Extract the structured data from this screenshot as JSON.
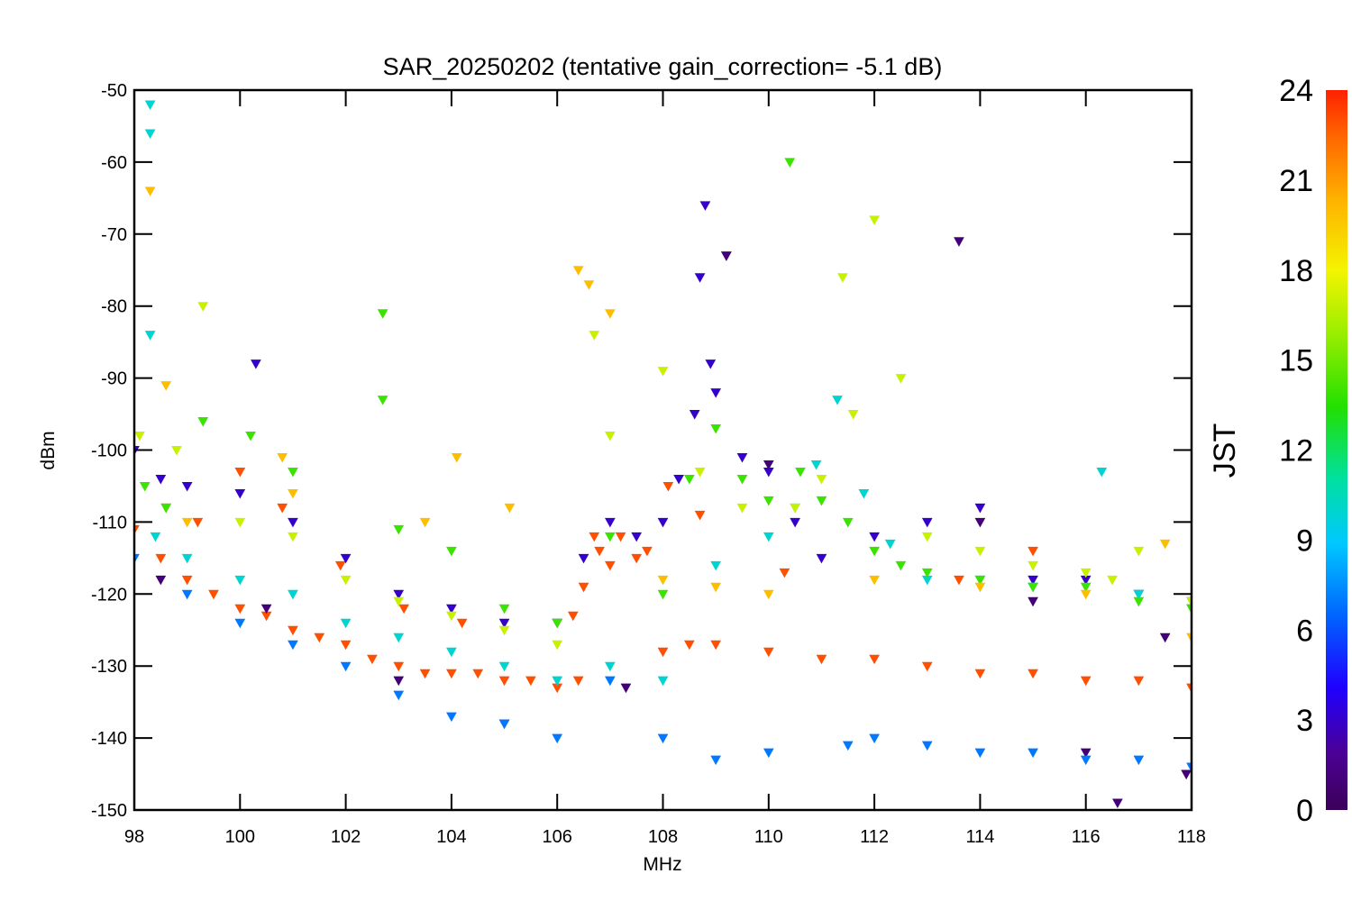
{
  "chart_data": {
    "type": "scatter",
    "title": "SAR_20250202 (tentative gain_correction= -5.1 dB)",
    "xlabel": "MHz",
    "ylabel": "dBm",
    "xlim": [
      98,
      118
    ],
    "ylim": [
      -150,
      -50
    ],
    "x_ticks": [
      "98",
      "100",
      "102",
      "104",
      "106",
      "108",
      "110",
      "112",
      "114",
      "116",
      "118"
    ],
    "y_ticks": [
      "-50",
      "-60",
      "-70",
      "-80",
      "-90",
      "-100",
      "-110",
      "-120",
      "-130",
      "-140",
      "-150"
    ],
    "colorbar": {
      "label": "JST",
      "range": [
        0,
        24
      ],
      "ticks": [
        "0",
        "3",
        "6",
        "9",
        "12",
        "15",
        "18",
        "21",
        "24"
      ],
      "colormap": "rainbow (purple to red)"
    },
    "series": [
      {
        "color_value": 23,
        "x": [
          98.0,
          98.5,
          99.0,
          99.5,
          100.0,
          100.5,
          101.0,
          101.5,
          102.0,
          102.5,
          103.0,
          103.5,
          104.0,
          104.5,
          105.0,
          105.5,
          106.0,
          106.4,
          106.5,
          106.8,
          107.0,
          107.5,
          108.0,
          108.5,
          109.0,
          110.0,
          111.0,
          112.0,
          113.0,
          114.0,
          115.0,
          116.0,
          117.0,
          118.0
        ],
        "y": [
          -111,
          -115,
          -118,
          -120,
          -122,
          -123,
          -125,
          -126,
          -127,
          -129,
          -130,
          -131,
          -131,
          -131,
          -132,
          -132,
          -133,
          -132,
          -119,
          -114,
          -116,
          -115,
          -128,
          -127,
          -127,
          -128,
          -129,
          -129,
          -130,
          -131,
          -131,
          -132,
          -132,
          -133
        ]
      },
      {
        "color_value": 23,
        "x": [
          98.6,
          99.2,
          100.0,
          100.8,
          101.9,
          103.1,
          104.2,
          106.3,
          106.7,
          107.2,
          107.7,
          108.1,
          108.7,
          110.3,
          113.6,
          115.0,
          117.9
        ],
        "y": [
          -108,
          -110,
          -103,
          -108,
          -116,
          -122,
          -124,
          -123,
          -112,
          -112,
          -114,
          -105,
          -109,
          -117,
          -118,
          -114,
          -145
        ]
      },
      {
        "color_value": 3,
        "x": [
          98.0,
          98.5,
          99.0,
          100.0,
          100.3,
          101.0,
          102.0,
          103.0,
          104.0,
          105.0,
          106.0,
          106.5,
          107.0,
          107.5,
          108.0,
          108.3,
          108.6,
          108.7,
          108.8,
          108.9,
          109.0,
          109.2,
          109.5,
          110.0,
          110.5,
          111.0,
          112.0,
          113.0,
          114.0,
          115.0,
          116.0,
          117.0,
          118.0
        ],
        "y": [
          -100,
          -104,
          -105,
          -106,
          -88,
          -110,
          -115,
          -120,
          -122,
          -124,
          -124,
          -115,
          -110,
          -112,
          -110,
          -104,
          -95,
          -76,
          -66,
          -88,
          -92,
          -73,
          -101,
          -103,
          -110,
          -115,
          -112,
          -110,
          -108,
          -118,
          -118,
          -120,
          -121
        ]
      },
      {
        "color_value": 10,
        "x": [
          98.3,
          98.3,
          98.3,
          98.4,
          99.0,
          100.0,
          101.0,
          102.0,
          103.0,
          104.0,
          105.0,
          106.0,
          107.0,
          108.0,
          109.0,
          110.0,
          110.5,
          110.9,
          111.3,
          111.8,
          112.3,
          113.0,
          114.0,
          115.0,
          116.3,
          117.0,
          118.0
        ],
        "y": [
          -52,
          -56,
          -84,
          -112,
          -115,
          -118,
          -120,
          -124,
          -126,
          -128,
          -130,
          -132,
          -130,
          -132,
          -116,
          -112,
          -108,
          -102,
          -93,
          -106,
          -113,
          -118,
          -118,
          -119,
          -103,
          -120,
          -122
        ]
      },
      {
        "color_value": 14,
        "x": [
          98.2,
          98.6,
          99.3,
          100.2,
          101.0,
          102.7,
          102.7,
          103.0,
          104.0,
          105.0,
          106.0,
          107.0,
          108.0,
          108.5,
          109.0,
          109.5,
          110.0,
          110.4,
          110.6,
          111.0,
          111.5,
          112.0,
          112.5,
          113.0,
          114.0,
          115.0,
          116.0,
          117.0,
          118.0
        ],
        "y": [
          -105,
          -108,
          -96,
          -98,
          -103,
          -81,
          -93,
          -111,
          -114,
          -122,
          -124,
          -112,
          -120,
          -104,
          -97,
          -104,
          -107,
          -60,
          -103,
          -107,
          -110,
          -114,
          -116,
          -117,
          -118,
          -119,
          -119,
          -121,
          -122
        ]
      },
      {
        "color_value": 17,
        "x": [
          98.1,
          98.8,
          99.3,
          100.0,
          101.0,
          102.0,
          103.0,
          104.0,
          105.0,
          106.0,
          106.7,
          107.0,
          108.0,
          108.7,
          109.5,
          110.5,
          111.0,
          111.4,
          111.6,
          112.0,
          112.5,
          113.0,
          114.0,
          115.0,
          116.0,
          116.5,
          117.0,
          118.0
        ],
        "y": [
          -98,
          -100,
          -80,
          -110,
          -112,
          -118,
          -121,
          -123,
          -125,
          -127,
          -84,
          -98,
          -89,
          -103,
          -108,
          -108,
          -104,
          -76,
          -95,
          -68,
          -90,
          -112,
          -114,
          -116,
          -117,
          -118,
          -114,
          -121
        ]
      },
      {
        "color_value": 20,
        "x": [
          98.3,
          98.6,
          99.0,
          100.8,
          101.0,
          103.5,
          104.1,
          105.1,
          106.4,
          106.6,
          107.0,
          108.0,
          109.0,
          110.0,
          112.0,
          114.0,
          116.0,
          117.5,
          118.0
        ],
        "y": [
          -64,
          -91,
          -110,
          -101,
          -106,
          -110,
          -101,
          -108,
          -75,
          -77,
          -81,
          -118,
          -119,
          -120,
          -118,
          -119,
          -120,
          -113,
          -126
        ]
      },
      {
        "color_value": 1,
        "x": [
          98.5,
          100.5,
          103.0,
          105.0,
          107.3,
          109.2,
          110.0,
          113.6,
          114.0,
          115.0,
          116.0,
          116.6,
          117.5,
          117.9
        ],
        "y": [
          -118,
          -122,
          -132,
          -138,
          -133,
          -73,
          -102,
          -71,
          -110,
          -121,
          -142,
          -149,
          -126,
          -145
        ]
      },
      {
        "color_value": 7,
        "x": [
          98.0,
          99.0,
          100.0,
          101.0,
          102.0,
          103.0,
          104.0,
          105.0,
          106.0,
          107.0,
          108.0,
          109.0,
          110.0,
          111.5,
          112.0,
          113.0,
          114.0,
          115.0,
          116.0,
          117.0,
          118.0
        ],
        "y": [
          -115,
          -120,
          -124,
          -127,
          -130,
          -134,
          -137,
          -138,
          -140,
          -132,
          -140,
          -143,
          -142,
          -141,
          -140,
          -141,
          -142,
          -142,
          -143,
          -143,
          -144
        ]
      }
    ]
  }
}
